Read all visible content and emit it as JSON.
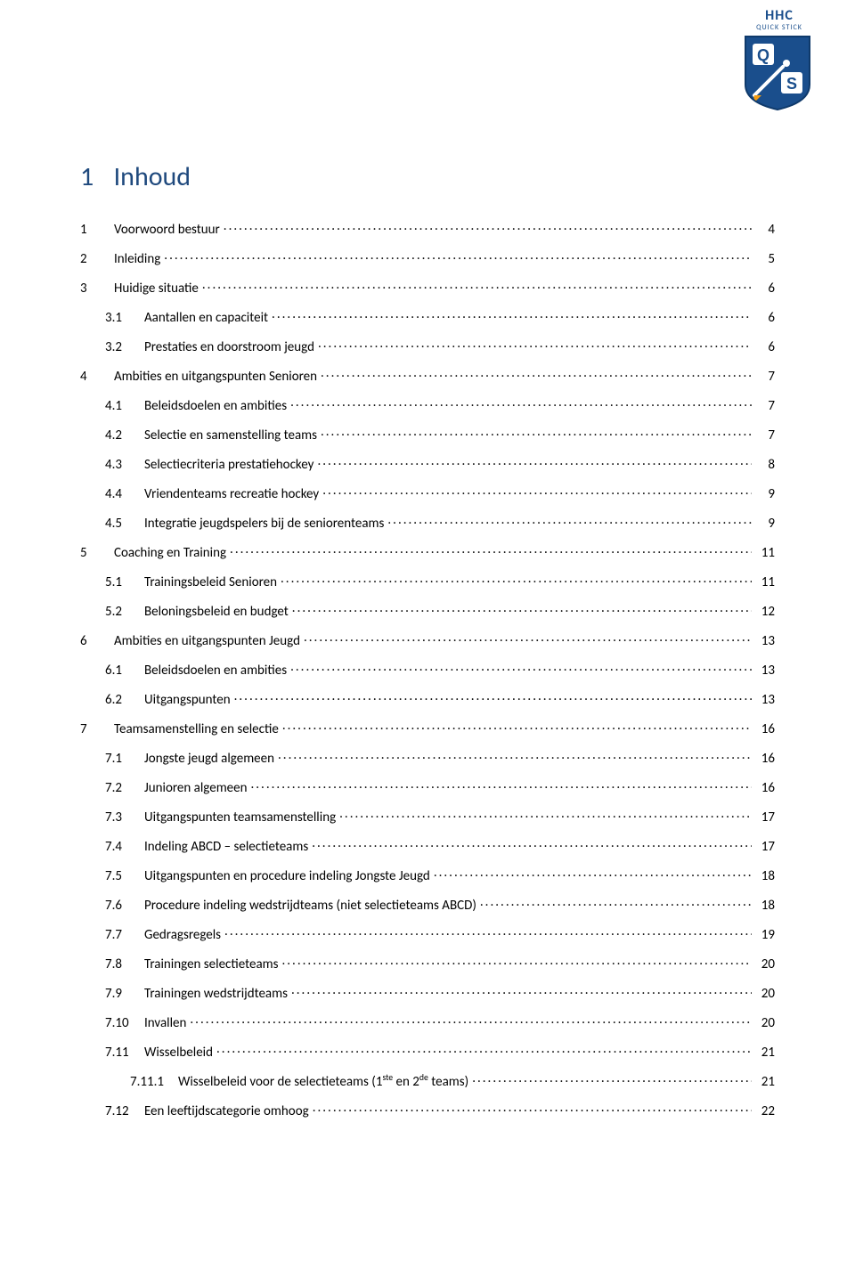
{
  "logo": {
    "top_text": "HHC",
    "sub_text": "QUICK STICK",
    "letters": [
      "Q",
      "S"
    ],
    "colors": {
      "shield_fill": "#1a4e8c",
      "shield_border": "#0f3a6b",
      "letter_box": "#ffffff",
      "letter_color": "#1a4e8c",
      "stick_orange": "#f39c12",
      "ball_white": "#ffffff"
    }
  },
  "title": {
    "number": "1",
    "text": "Inhoud",
    "color": "#1f497d",
    "fontsize": 30
  },
  "toc_colors": {
    "text": "#000000",
    "fontsize": 15
  },
  "toc": [
    {
      "level": 1,
      "num": "1",
      "label": "Voorwoord bestuur",
      "page": "4"
    },
    {
      "level": 1,
      "num": "2",
      "label": "Inleiding",
      "page": "5"
    },
    {
      "level": 1,
      "num": "3",
      "label": "Huidige situatie",
      "page": "6"
    },
    {
      "level": 2,
      "num": "3.1",
      "label": "Aantallen en capaciteit",
      "page": "6"
    },
    {
      "level": 2,
      "num": "3.2",
      "label": "Prestaties en doorstroom jeugd",
      "page": "6"
    },
    {
      "level": 1,
      "num": "4",
      "label": "Ambities en uitgangspunten Senioren",
      "page": "7"
    },
    {
      "level": 2,
      "num": "4.1",
      "label": "Beleidsdoelen en ambities",
      "page": "7"
    },
    {
      "level": 2,
      "num": "4.2",
      "label": "Selectie en samenstelling teams",
      "page": "7"
    },
    {
      "level": 2,
      "num": "4.3",
      "label": "Selectiecriteria prestatiehockey",
      "page": "8"
    },
    {
      "level": 2,
      "num": "4.4",
      "label": "Vriendenteams recreatie hockey",
      "page": "9"
    },
    {
      "level": 2,
      "num": "4.5",
      "label": "Integratie jeugdspelers bij de seniorenteams",
      "page": "9"
    },
    {
      "level": 1,
      "num": "5",
      "label": "Coaching en Training",
      "page": "11"
    },
    {
      "level": 2,
      "num": "5.1",
      "label": "Trainingsbeleid Senioren",
      "page": "11"
    },
    {
      "level": 2,
      "num": "5.2",
      "label": "Beloningsbeleid en budget",
      "page": "12"
    },
    {
      "level": 1,
      "num": "6",
      "label": "Ambities en uitgangspunten Jeugd",
      "page": "13"
    },
    {
      "level": 2,
      "num": "6.1",
      "label": "Beleidsdoelen en ambities",
      "page": "13"
    },
    {
      "level": 2,
      "num": "6.2",
      "label": "Uitgangspunten",
      "page": "13"
    },
    {
      "level": 1,
      "num": "7",
      "label": "Teamsamenstelling en selectie",
      "page": "16"
    },
    {
      "level": 2,
      "num": "7.1",
      "label": "Jongste jeugd algemeen",
      "page": "16"
    },
    {
      "level": 2,
      "num": "7.2",
      "label": "Junioren algemeen",
      "page": "16"
    },
    {
      "level": 2,
      "num": "7.3",
      "label": "Uitgangspunten teamsamenstelling",
      "page": "17"
    },
    {
      "level": 2,
      "num": "7.4",
      "label": "Indeling ABCD – selectieteams",
      "page": "17"
    },
    {
      "level": 2,
      "num": "7.5",
      "label": "Uitgangspunten en procedure indeling Jongste Jeugd",
      "page": "18"
    },
    {
      "level": 2,
      "num": "7.6",
      "label": "Procedure indeling wedstrijdteams (niet selectieteams ABCD)",
      "page": "18"
    },
    {
      "level": 2,
      "num": "7.7",
      "label": "Gedragsregels",
      "page": "19"
    },
    {
      "level": 2,
      "num": "7.8",
      "label": "Trainingen selectieteams",
      "page": "20"
    },
    {
      "level": 2,
      "num": "7.9",
      "label": "Trainingen wedstrijdteams",
      "page": "20"
    },
    {
      "level": 2,
      "num": "7.10",
      "label": "Invallen",
      "page": "20"
    },
    {
      "level": 2,
      "num": "7.11",
      "label": "Wisselbeleid",
      "page": "21"
    },
    {
      "level": 3,
      "num": "7.11.1",
      "label_html": "Wisselbeleid voor de selectieteams (1<sup>ste</sup> en 2<sup>de</sup> teams)",
      "label": "Wisselbeleid voor de selectieteams (1ste en 2de teams)",
      "page": "21"
    },
    {
      "level": 2,
      "num": "7.12",
      "label": "Een leeftijdscategorie omhoog",
      "page": "22"
    }
  ]
}
